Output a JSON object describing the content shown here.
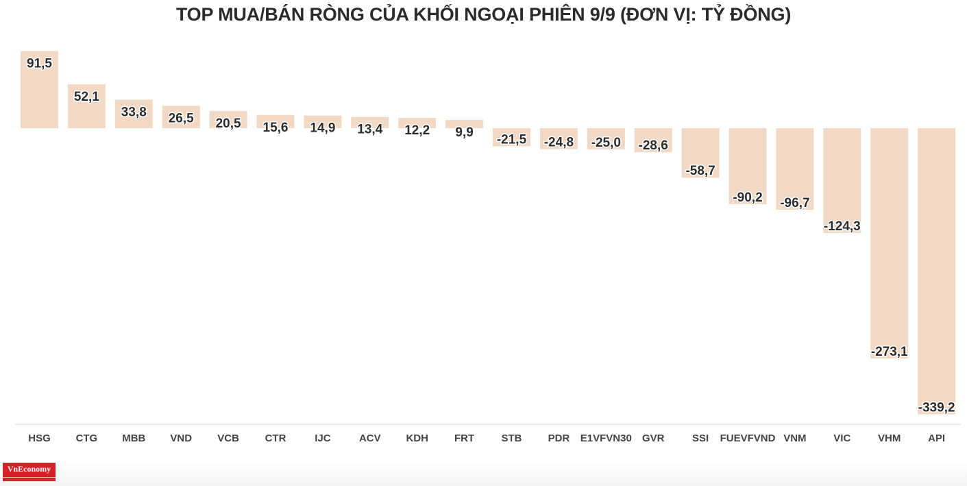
{
  "chart_data": {
    "type": "bar",
    "title": "TOP MUA/BÁN RÒNG CỦA KHỐI NGOẠI PHIÊN 9/9 (ĐƠN VỊ: TỶ ĐỒNG)",
    "categories": [
      "HSG",
      "CTG",
      "MBB",
      "VND",
      "VCB",
      "CTR",
      "IJC",
      "ACV",
      "KDH",
      "FRT",
      "STB",
      "PDR",
      "E1VFVN30",
      "GVR",
      "SSI",
      "FUEVFVND",
      "VNM",
      "VIC",
      "VHM",
      "API"
    ],
    "values": [
      91.5,
      52.1,
      33.8,
      26.5,
      20.5,
      15.6,
      14.9,
      13.4,
      12.2,
      9.9,
      -21.5,
      -24.8,
      -25.0,
      -28.6,
      -58.7,
      -90.2,
      -96.7,
      -124.3,
      -273.1,
      -339.2
    ],
    "value_labels": [
      "91,5",
      "52,1",
      "33,8",
      "26,5",
      "20,5",
      "15,6",
      "14,9",
      "13,4",
      "12,2",
      "9,9",
      "-21,5",
      "-24,8",
      "-25,0",
      "-28,6",
      "-58,7",
      "-90,2",
      "-96,7",
      "-124,3",
      "-273,1",
      "-339,2"
    ],
    "xlabel": "",
    "ylabel": "",
    "ylim": [
      -339.2,
      91.5
    ],
    "grid": false,
    "bar_color": "#f2d9c6"
  },
  "brand": {
    "logo_text": "VnEconomy",
    "logo_color": "#d61f26"
  }
}
